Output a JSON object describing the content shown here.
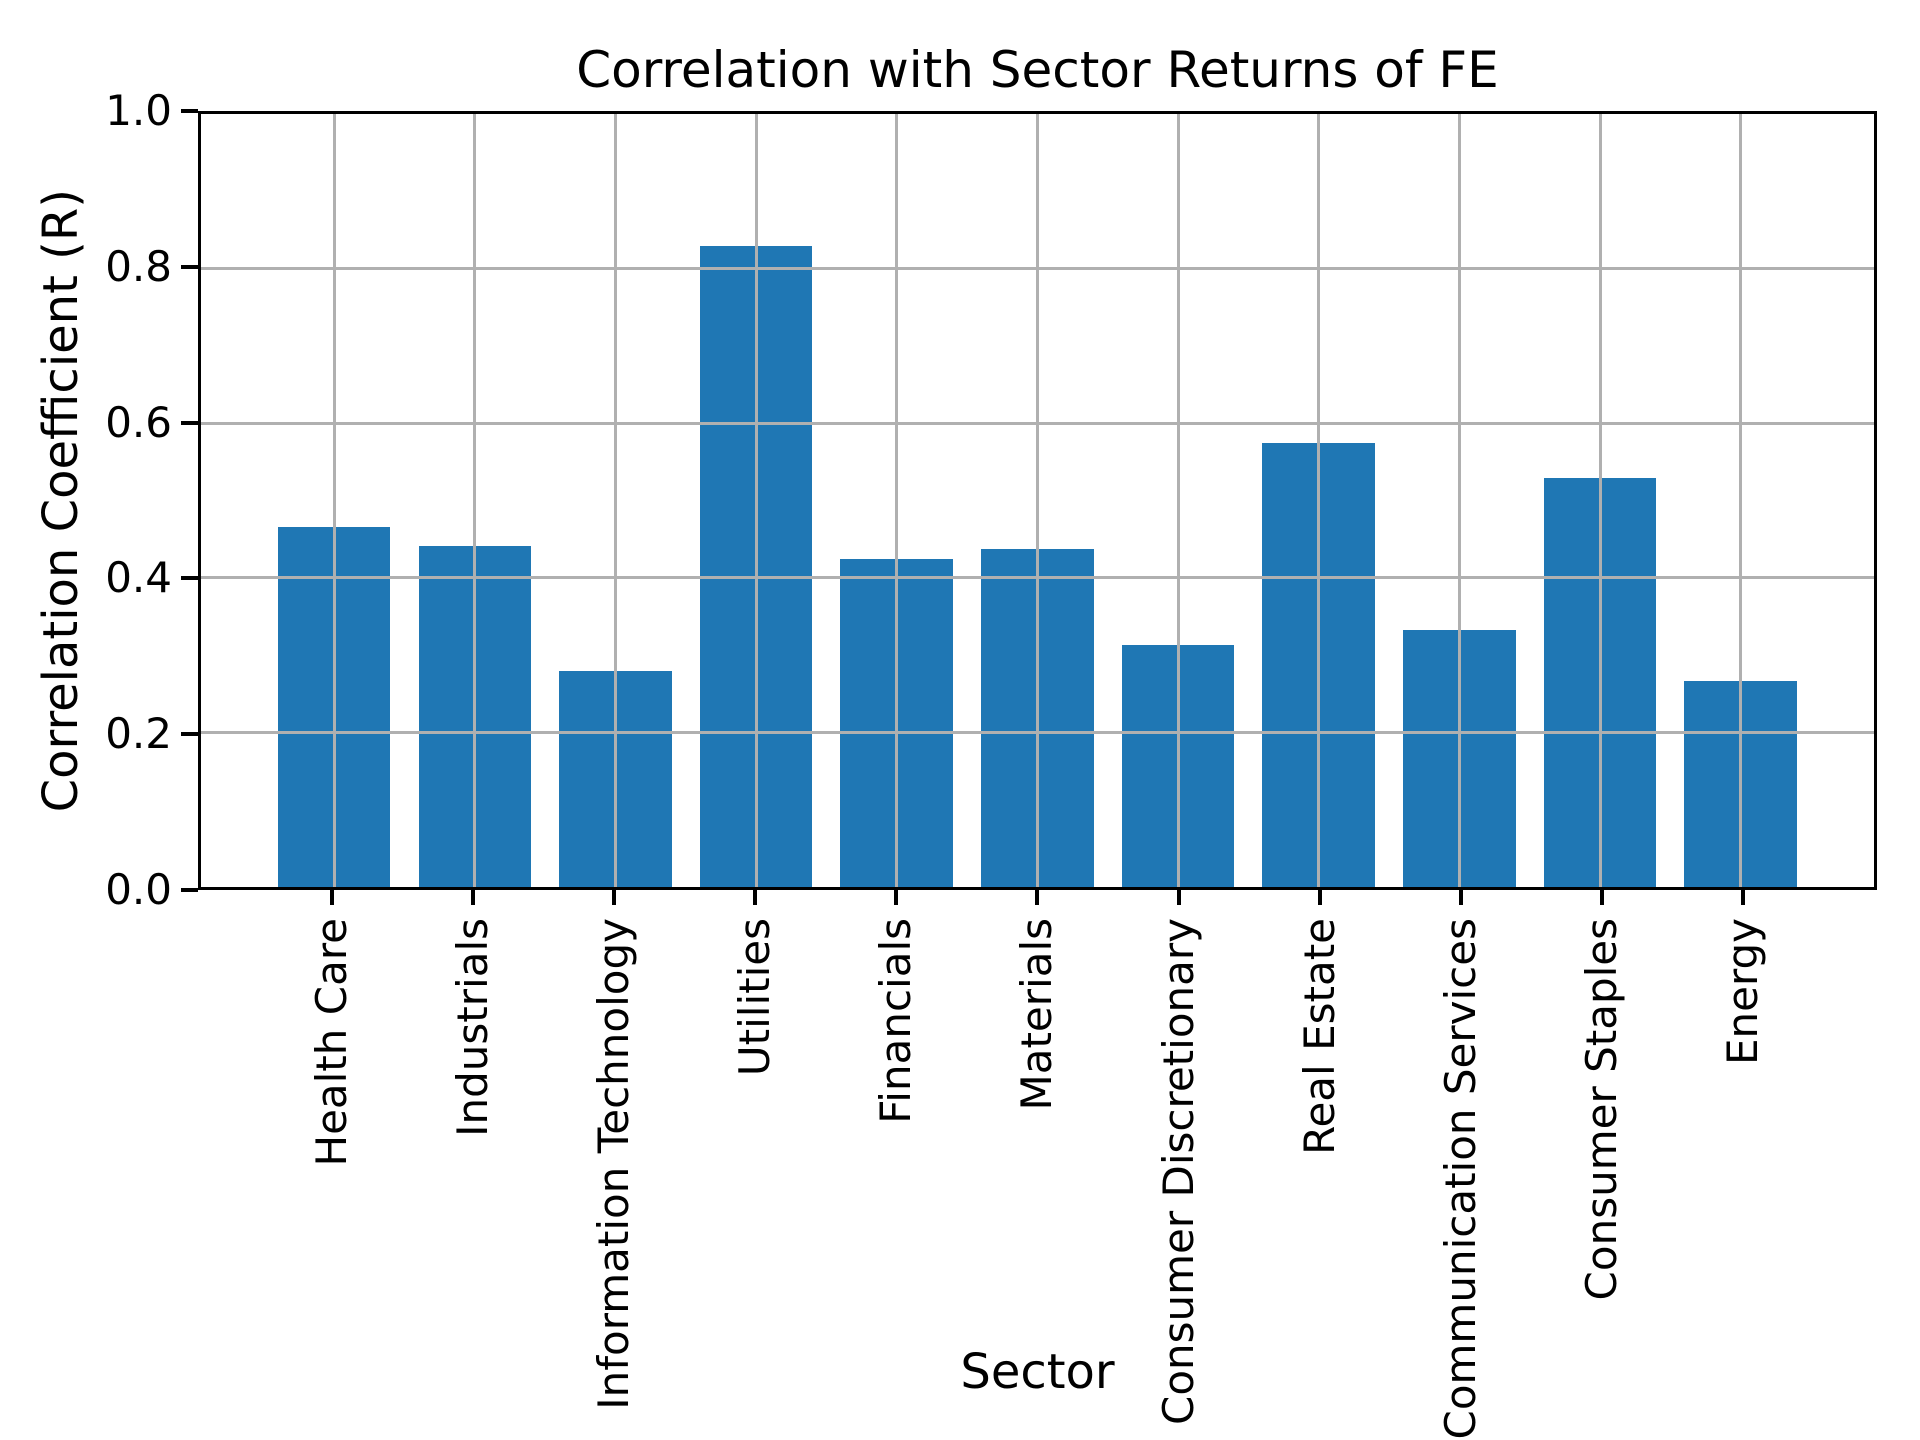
{
  "figure": {
    "background": "#ffffff"
  },
  "chart_data": {
    "type": "bar",
    "title": "Correlation with Sector Returns of FE",
    "xlabel": "Sector",
    "ylabel": "Correlation Coefficient (R)",
    "categories": [
      "Health Care",
      "Industrials",
      "Information Technology",
      "Utilities",
      "Financials",
      "Materials",
      "Consumer Discretionary",
      "Real Estate",
      "Communication Services",
      "Consumer Staples",
      "Energy"
    ],
    "values": [
      0.466,
      0.441,
      0.28,
      0.829,
      0.424,
      0.437,
      0.313,
      0.574,
      0.333,
      0.529,
      0.266
    ],
    "ylim": [
      0.0,
      1.0
    ],
    "yticks": [
      0.0,
      0.2,
      0.4,
      0.6,
      0.8,
      1.0
    ],
    "ytick_labels": [
      "0.0",
      "0.2",
      "0.4",
      "0.6",
      "0.8",
      "1.0"
    ],
    "grid": true,
    "grid_over_bars": true,
    "legend": "none",
    "bar_color": "#1f77b4",
    "grid_color": "#b0b0b0",
    "axis_color": "#000000",
    "text_color": "#000000"
  }
}
